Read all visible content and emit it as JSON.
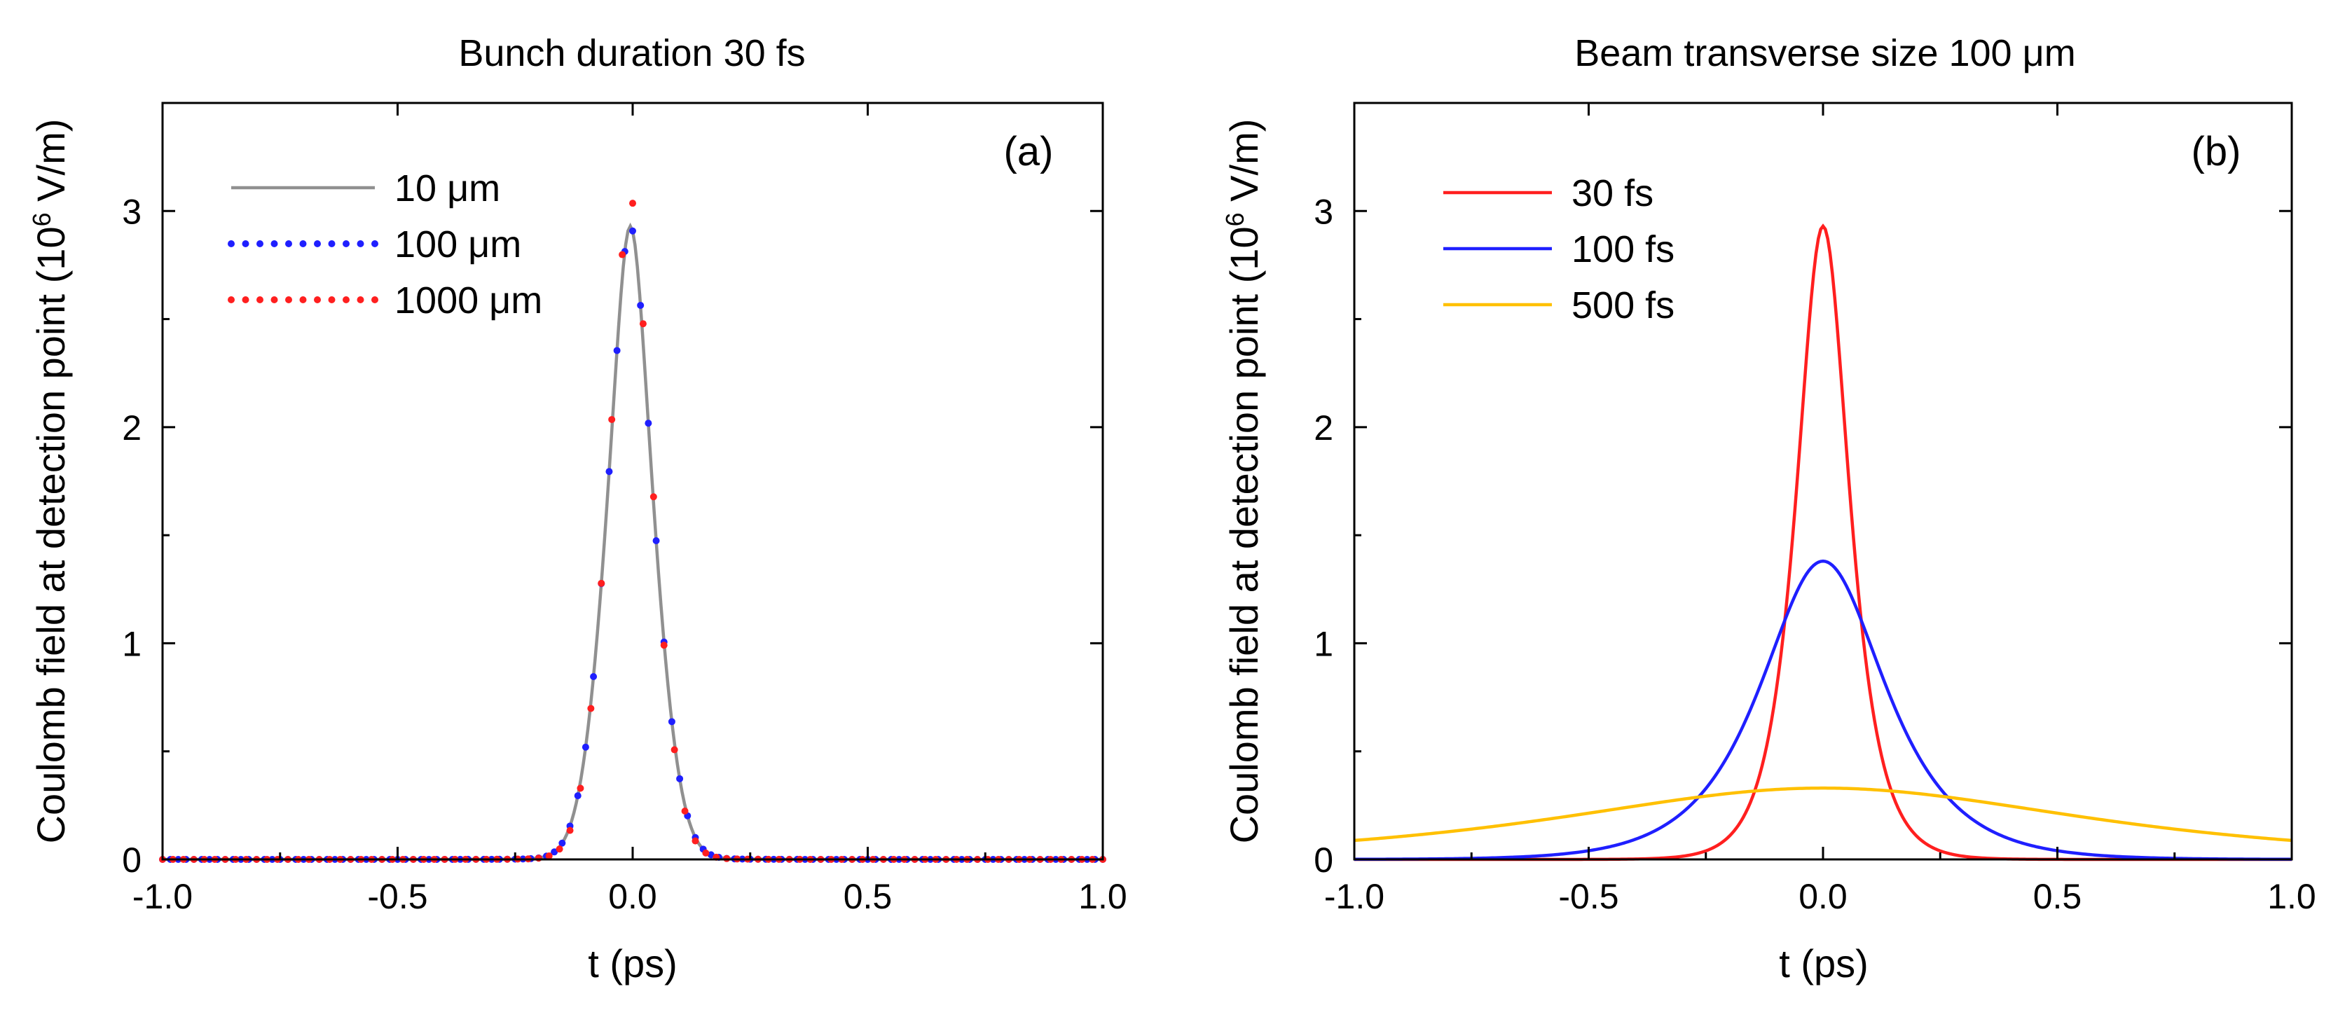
{
  "figure": {
    "greek_mu": "μ"
  },
  "chart_data": [
    {
      "type": "line",
      "panel_label": "(a)",
      "title": "Bunch duration 30 fs",
      "xlabel": "t (ps)",
      "ylabel": "Coulomb field at detection point (10",
      "ylabel_sup": "6",
      "ylabel_tail": " V/m)",
      "xlim": [
        -1.0,
        1.0
      ],
      "ylim": [
        0,
        3.5
      ],
      "xticks": [
        "-1.0",
        "-0.5",
        "0.0",
        "0.5",
        "1.0"
      ],
      "xtick_values": [
        -1.0,
        -0.5,
        0.0,
        0.5,
        1.0
      ],
      "yticks": [
        "0",
        "1",
        "2",
        "3"
      ],
      "ytick_values": [
        0,
        1,
        2,
        3
      ],
      "legend_position": "top-left",
      "series": [
        {
          "name": "10 μm",
          "color": "#909090",
          "style": "solid",
          "peak": 2.93,
          "center": -0.005,
          "sigma": 0.055,
          "tail": 0.085,
          "samples": 400
        },
        {
          "name": "100 μm",
          "color": "#1f1fff",
          "style": "dotted",
          "peak": 2.93,
          "center": -0.005,
          "sigma": 0.055,
          "tail": 0.085,
          "samples": 120
        },
        {
          "name": "1000 μm",
          "color": "#ff1f1f",
          "style": "dotted",
          "peak": 3.06,
          "center": -0.005,
          "sigma": 0.053,
          "tail": 0.085,
          "samples": 90
        }
      ]
    },
    {
      "type": "line",
      "panel_label": "(b)",
      "title": "Beam transverse size 100 ",
      "title_unit": "μm",
      "xlabel": "t (ps)",
      "ylabel": "Coulomb field at detection point (10",
      "ylabel_sup": "6",
      "ylabel_tail": " V/m)",
      "xlim": [
        -1.0,
        1.0
      ],
      "ylim": [
        0,
        3.5
      ],
      "xticks": [
        "-1.0",
        "-0.5",
        "0.0",
        "0.5",
        "1.0"
      ],
      "xtick_values": [
        -1.0,
        -0.5,
        0.0,
        0.5,
        1.0
      ],
      "yticks": [
        "0",
        "1",
        "2",
        "3"
      ],
      "ytick_values": [
        0,
        1,
        2,
        3
      ],
      "legend_position": "top-left",
      "series": [
        {
          "name": "30 fs",
          "color": "#ff1f1f",
          "style": "solid",
          "peak": 2.93,
          "center": 0.0,
          "sigma": 0.055,
          "samples": 400
        },
        {
          "name": "100 fs",
          "color": "#1f1fff",
          "style": "solid",
          "peak": 1.38,
          "center": 0.0,
          "sigma": 0.13,
          "samples": 400
        },
        {
          "name": "500 fs",
          "color": "#ffc000",
          "style": "solid",
          "peak": 0.33,
          "center": 0.0,
          "sigma": 0.55,
          "samples": 400
        }
      ]
    }
  ]
}
